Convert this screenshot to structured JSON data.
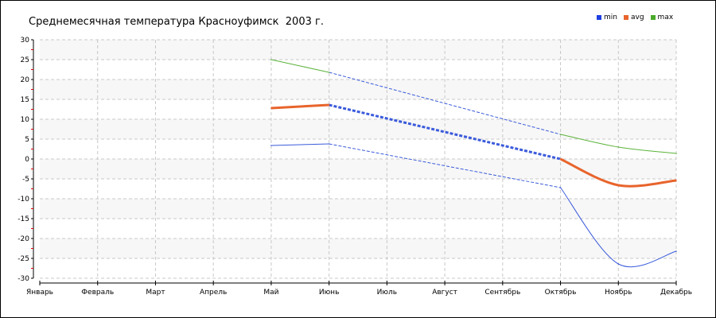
{
  "chart_data": {
    "type": "line",
    "title": "Среднемесячная температура Красноуфимск  2003 г.",
    "categories": [
      "Январь",
      "Февраль",
      "Март",
      "Апрель",
      "Май",
      "Июнь",
      "Июль",
      "Август",
      "Сентябрь",
      "Октябрь",
      "Ноябрь",
      "Декабрь"
    ],
    "ylim": [
      -30,
      30
    ],
    "yticks": [
      "30",
      "25",
      "20",
      "15",
      "10",
      "5",
      "0",
      "-5",
      "-10",
      "-15",
      "-20",
      "-25",
      "-30"
    ],
    "grid": true,
    "legend_position": "top-right",
    "missing_data_note": "",
    "series": [
      {
        "name": "min",
        "color": "#3b5bdb",
        "values": [
          null,
          null,
          null,
          null,
          3.4,
          3.8,
          null,
          null,
          null,
          -7.2,
          -26.4,
          -23.2
        ]
      },
      {
        "name": "avg",
        "color": "#e8642c",
        "values": [
          null,
          null,
          null,
          null,
          12.8,
          13.6,
          null,
          null,
          null,
          0.0,
          -6.6,
          -5.4
        ]
      },
      {
        "name": "max",
        "color": "#5bb33a",
        "values": [
          null,
          null,
          null,
          null,
          25.0,
          21.8,
          null,
          null,
          null,
          6.2,
          3.0,
          1.4
        ]
      }
    ],
    "interpolated_color": "#3b5bdb"
  },
  "legend": [
    {
      "label": "min",
      "color": "#1f3fe0"
    },
    {
      "label": "avg",
      "color": "#e8642c"
    },
    {
      "label": "max",
      "color": "#4aaa2a"
    }
  ]
}
